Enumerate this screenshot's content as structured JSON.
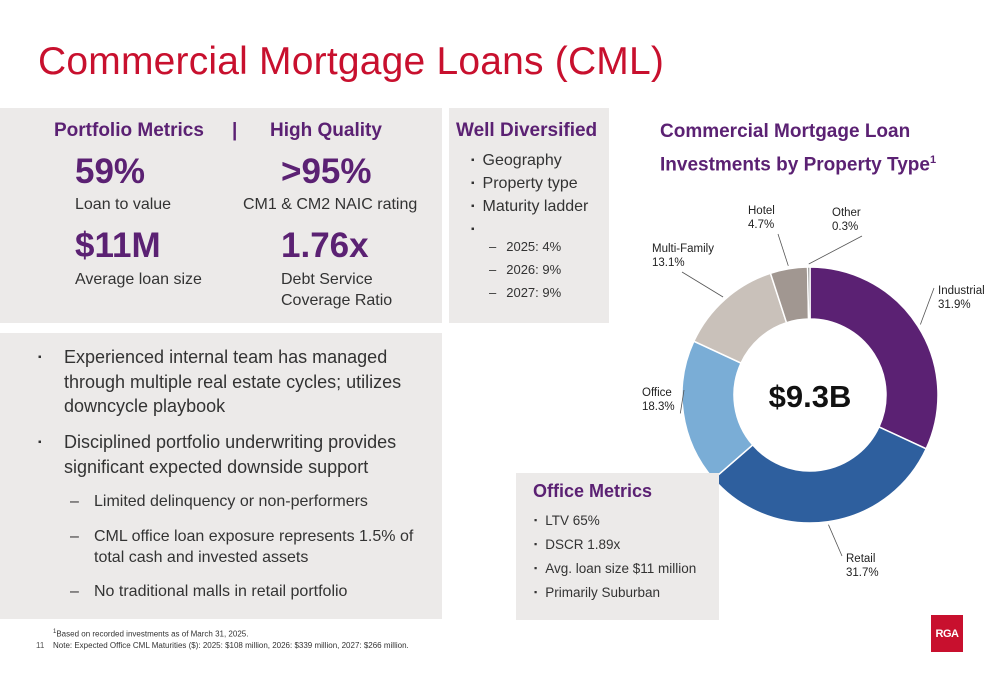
{
  "title": "Commercial Mortgage Loans (CML)",
  "metrics": {
    "portfolio_heading": "Portfolio Metrics",
    "separator": "|",
    "quality_heading": "High Quality",
    "ltv_value": "59%",
    "ltv_label": "Loan to value",
    "naic_value": ">95%",
    "naic_label": "CM1 & CM2 NAIC rating",
    "size_value": "$11M",
    "size_label": "Average loan size",
    "dscr_value": "1.76x",
    "dscr_label_1": "Debt Service",
    "dscr_label_2": "Coverage Ratio"
  },
  "diversified": {
    "heading": "Well Diversified",
    "items": [
      "Geography",
      "Property type",
      "Maturity ladder"
    ],
    "sub_items": [
      "2025: 4%",
      "2026: 9%",
      "2027: 9%"
    ]
  },
  "bullets": {
    "b1_line1": "Experienced internal team has managed",
    "b1_line2": "through multiple real estate cycles; utilizes",
    "b1_line3": "downcycle playbook",
    "b2_line1": "Disciplined portfolio underwriting provides",
    "b2_line2": "significant expected downside support",
    "s1": "Limited delinquency or non-performers",
    "s2_line1": "CML office loan exposure represents 1.5% of",
    "s2_line2": "total cash and invested assets",
    "s3": "No traditional malls in retail portfolio",
    "bullet_glyph": "▪",
    "dash_glyph": "–"
  },
  "office": {
    "heading": "Office Metrics",
    "items": [
      "LTV 65%",
      "DSCR 1.89x",
      "Avg. loan size $11 million",
      "Primarily Suburban"
    ]
  },
  "chart_title": {
    "line1": "Commercial Mortgage Loan",
    "line2": "Investments by Property Type",
    "sup": "1"
  },
  "chart_data": {
    "type": "pie",
    "title": "Commercial Mortgage Loan Investments by Property Type",
    "center_label": "$9.3B",
    "slices": [
      {
        "name": "Industrial",
        "label": "31.9%",
        "value": 31.9,
        "color": "#5b2173"
      },
      {
        "name": "Retail",
        "label": "31.7%",
        "value": 31.7,
        "color": "#2e5f9e"
      },
      {
        "name": "Office",
        "label": "18.3%",
        "value": 18.3,
        "color": "#7aadd6"
      },
      {
        "name": "Multi-Family",
        "label": "13.1%",
        "value": 13.1,
        "color": "#c9c1ba"
      },
      {
        "name": "Hotel",
        "label": "4.7%",
        "value": 4.7,
        "color": "#a19791"
      },
      {
        "name": "Other",
        "label": "0.3%",
        "value": 0.3,
        "color": "#6e6e6e"
      }
    ]
  },
  "footnotes": {
    "f1_sup": "1",
    "f1": "Based on recorded investments as of March 31, 2025.",
    "f2": "Note: Expected Office CML Maturities ($): 2025: $108 million, 2026: $339 million, 2027: $266 million.",
    "page": "11"
  },
  "logo_text": "RGA"
}
